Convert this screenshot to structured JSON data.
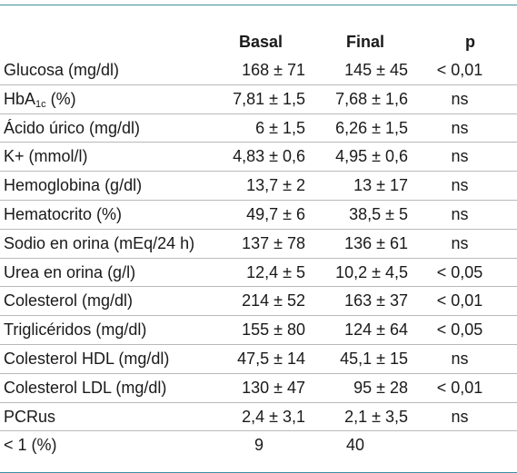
{
  "table": {
    "columns": {
      "basal": "Basal",
      "final": "Final",
      "p": "p"
    },
    "rows": [
      {
        "label": "Glucosa (mg/dl)",
        "basal": "168 ± 71",
        "final": "145 ± 45",
        "p": "< 0,01"
      },
      {
        "label_main": "HbA",
        "label_sub": "1c",
        "label_rest": " (%)",
        "basal": "7,81 ± 1,5",
        "final": "7,68 ± 1,6",
        "p": "ns"
      },
      {
        "label": "Ácido úrico (mg/dl)",
        "basal": "6 ± 1,5",
        "final": "6,26 ± 1,5",
        "p": "ns"
      },
      {
        "label": "K+ (mmol/l)",
        "basal": "4,83 ± 0,6",
        "final": "4,95 ± 0,6",
        "p": "ns"
      },
      {
        "label": "Hemoglobina (g/dl)",
        "basal": "13,7 ± 2",
        "final": "13 ± 17",
        "p": "ns"
      },
      {
        "label": "Hematocrito (%)",
        "basal": "49,7 ± 6",
        "final": "38,5 ± 5",
        "p": "ns"
      },
      {
        "label": "Sodio en orina (mEq/24 h)",
        "basal": "137 ± 78",
        "final": "136 ± 61",
        "p": "ns"
      },
      {
        "label": "Urea en orina (g/l)",
        "basal": "12,4 ± 5",
        "final": "10,2 ± 4,5",
        "p": "< 0,05"
      },
      {
        "label": "Colesterol (mg/dl)",
        "basal": "214 ± 52",
        "final": "163 ± 37",
        "p": "< 0,01"
      },
      {
        "label": "Triglicéridos (mg/dl)",
        "basal": "155 ± 80",
        "final": "124 ± 64",
        "p": "< 0,05"
      },
      {
        "label": "Colesterol HDL (mg/dl)",
        "basal": "47,5 ± 14",
        "final": "45,1 ± 15",
        "p": "ns"
      },
      {
        "label": "Colesterol LDL (mg/dl)",
        "basal": "130 ± 47",
        "final": "95 ± 28",
        "p": "< 0,01"
      },
      {
        "label": "PCRus",
        "basal": "2,4 ± 3,1",
        "final": "2,1 ± 3,5",
        "p": "ns"
      },
      {
        "label": "< 1 (%)",
        "basal": "9",
        "final": "40",
        "p": ""
      }
    ]
  },
  "colors": {
    "rule": "#3f8fa0",
    "row_divider": "#b9b9b9"
  }
}
